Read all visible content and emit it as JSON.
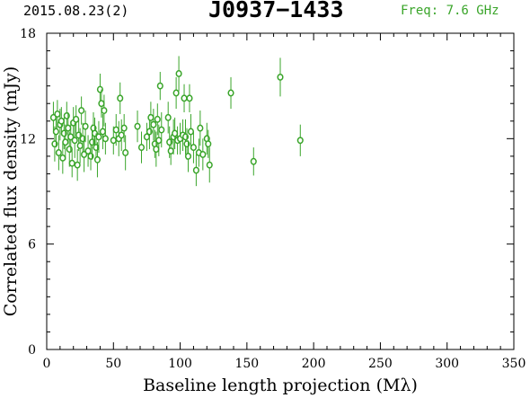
{
  "header": {
    "date": "2015.08.23(2)",
    "source": "J0937−1433",
    "freq": "Freq: 7.6 GHz"
  },
  "colors": {
    "points": "#3aa52a",
    "axes": "#000000"
  },
  "chart_data": {
    "type": "scatter",
    "title": "J0937−1433",
    "xlabel": "Baseline length projection (Mλ)",
    "ylabel": "Correlated flux density (mJy)",
    "xlim": [
      0,
      350
    ],
    "ylim": [
      0,
      18
    ],
    "xticks": [
      "0",
      "50",
      "100",
      "150",
      "200",
      "250",
      "300",
      "350"
    ],
    "yticks": [
      "0",
      "6",
      "12",
      "18"
    ],
    "grid": false,
    "points": [
      {
        "x": 5,
        "y": 13.2,
        "err": 0.9
      },
      {
        "x": 6,
        "y": 11.7,
        "err": 1.0
      },
      {
        "x": 7,
        "y": 12.4,
        "err": 0.9
      },
      {
        "x": 8,
        "y": 13.4,
        "err": 0.8
      },
      {
        "x": 9,
        "y": 11.2,
        "err": 1.0
      },
      {
        "x": 10,
        "y": 12.8,
        "err": 0.9
      },
      {
        "x": 11,
        "y": 13.0,
        "err": 0.8
      },
      {
        "x": 12,
        "y": 10.9,
        "err": 0.9
      },
      {
        "x": 13,
        "y": 12.3,
        "err": 0.9
      },
      {
        "x": 14,
        "y": 11.8,
        "err": 1.0
      },
      {
        "x": 15,
        "y": 13.3,
        "err": 0.8
      },
      {
        "x": 16,
        "y": 12.6,
        "err": 0.9
      },
      {
        "x": 17,
        "y": 11.4,
        "err": 1.0
      },
      {
        "x": 18,
        "y": 12.1,
        "err": 0.9
      },
      {
        "x": 19,
        "y": 10.6,
        "err": 0.8
      },
      {
        "x": 20,
        "y": 12.9,
        "err": 0.9
      },
      {
        "x": 21,
        "y": 11.9,
        "err": 1.0
      },
      {
        "x": 22,
        "y": 13.1,
        "err": 0.8
      },
      {
        "x": 23,
        "y": 10.5,
        "err": 0.9
      },
      {
        "x": 24,
        "y": 12.2,
        "err": 0.9
      },
      {
        "x": 25,
        "y": 11.6,
        "err": 1.0
      },
      {
        "x": 26,
        "y": 13.6,
        "err": 0.8
      },
      {
        "x": 27,
        "y": 12.0,
        "err": 0.9
      },
      {
        "x": 28,
        "y": 11.1,
        "err": 1.0
      },
      {
        "x": 29,
        "y": 12.7,
        "err": 0.9
      },
      {
        "x": 31,
        "y": 11.3,
        "err": 0.9
      },
      {
        "x": 33,
        "y": 11.0,
        "err": 0.8
      },
      {
        "x": 34,
        "y": 11.8,
        "err": 1.0
      },
      {
        "x": 35,
        "y": 12.6,
        "err": 0.9
      },
      {
        "x": 36,
        "y": 12.3,
        "err": 0.9
      },
      {
        "x": 37,
        "y": 11.5,
        "err": 0.8
      },
      {
        "x": 38,
        "y": 10.8,
        "err": 1.0
      },
      {
        "x": 39,
        "y": 12.1,
        "err": 0.9
      },
      {
        "x": 40,
        "y": 14.8,
        "err": 0.9
      },
      {
        "x": 41,
        "y": 14.0,
        "err": 0.8
      },
      {
        "x": 42,
        "y": 12.4,
        "err": 1.0
      },
      {
        "x": 43,
        "y": 13.6,
        "err": 0.9
      },
      {
        "x": 44,
        "y": 12.0,
        "err": 0.9
      },
      {
        "x": 50,
        "y": 11.9,
        "err": 0.8
      },
      {
        "x": 52,
        "y": 12.5,
        "err": 0.9
      },
      {
        "x": 54,
        "y": 12.0,
        "err": 1.0
      },
      {
        "x": 55,
        "y": 14.3,
        "err": 0.9
      },
      {
        "x": 56,
        "y": 12.2,
        "err": 0.9
      },
      {
        "x": 58,
        "y": 12.6,
        "err": 0.8
      },
      {
        "x": 59,
        "y": 11.2,
        "err": 1.0
      },
      {
        "x": 68,
        "y": 12.7,
        "err": 0.9
      },
      {
        "x": 71,
        "y": 11.5,
        "err": 0.9
      },
      {
        "x": 75,
        "y": 12.1,
        "err": 0.8
      },
      {
        "x": 77,
        "y": 12.4,
        "err": 1.0
      },
      {
        "x": 78,
        "y": 13.2,
        "err": 0.9
      },
      {
        "x": 80,
        "y": 12.8,
        "err": 0.9
      },
      {
        "x": 81,
        "y": 11.7,
        "err": 0.8
      },
      {
        "x": 82,
        "y": 11.4,
        "err": 1.0
      },
      {
        "x": 83,
        "y": 13.1,
        "err": 0.9
      },
      {
        "x": 84,
        "y": 11.9,
        "err": 0.9
      },
      {
        "x": 85,
        "y": 15.0,
        "err": 0.8
      },
      {
        "x": 86,
        "y": 12.5,
        "err": 1.0
      },
      {
        "x": 91,
        "y": 13.2,
        "err": 0.9
      },
      {
        "x": 92,
        "y": 11.8,
        "err": 0.9
      },
      {
        "x": 93,
        "y": 11.3,
        "err": 0.8
      },
      {
        "x": 95,
        "y": 12.1,
        "err": 1.0
      },
      {
        "x": 96,
        "y": 12.3,
        "err": 0.9
      },
      {
        "x": 97,
        "y": 14.6,
        "err": 0.9
      },
      {
        "x": 98,
        "y": 11.9,
        "err": 0.8
      },
      {
        "x": 99,
        "y": 15.7,
        "err": 1.0
      },
      {
        "x": 100,
        "y": 12.0,
        "err": 0.9
      },
      {
        "x": 102,
        "y": 12.2,
        "err": 0.9
      },
      {
        "x": 103,
        "y": 14.3,
        "err": 0.8
      },
      {
        "x": 104,
        "y": 12.1,
        "err": 1.0
      },
      {
        "x": 105,
        "y": 11.7,
        "err": 0.9
      },
      {
        "x": 106,
        "y": 11.0,
        "err": 0.9
      },
      {
        "x": 107,
        "y": 14.3,
        "err": 0.8
      },
      {
        "x": 108,
        "y": 12.4,
        "err": 1.0
      },
      {
        "x": 110,
        "y": 11.5,
        "err": 0.9
      },
      {
        "x": 112,
        "y": 10.2,
        "err": 0.9
      },
      {
        "x": 114,
        "y": 11.2,
        "err": 0.8
      },
      {
        "x": 115,
        "y": 12.6,
        "err": 1.0
      },
      {
        "x": 117,
        "y": 11.1,
        "err": 0.9
      },
      {
        "x": 120,
        "y": 12.0,
        "err": 0.9
      },
      {
        "x": 121,
        "y": 11.7,
        "err": 0.8
      },
      {
        "x": 122,
        "y": 10.5,
        "err": 1.0
      },
      {
        "x": 138,
        "y": 14.6,
        "err": 0.9
      },
      {
        "x": 155,
        "y": 10.7,
        "err": 0.8
      },
      {
        "x": 175,
        "y": 15.5,
        "err": 1.1
      },
      {
        "x": 190,
        "y": 11.9,
        "err": 0.9
      }
    ]
  }
}
